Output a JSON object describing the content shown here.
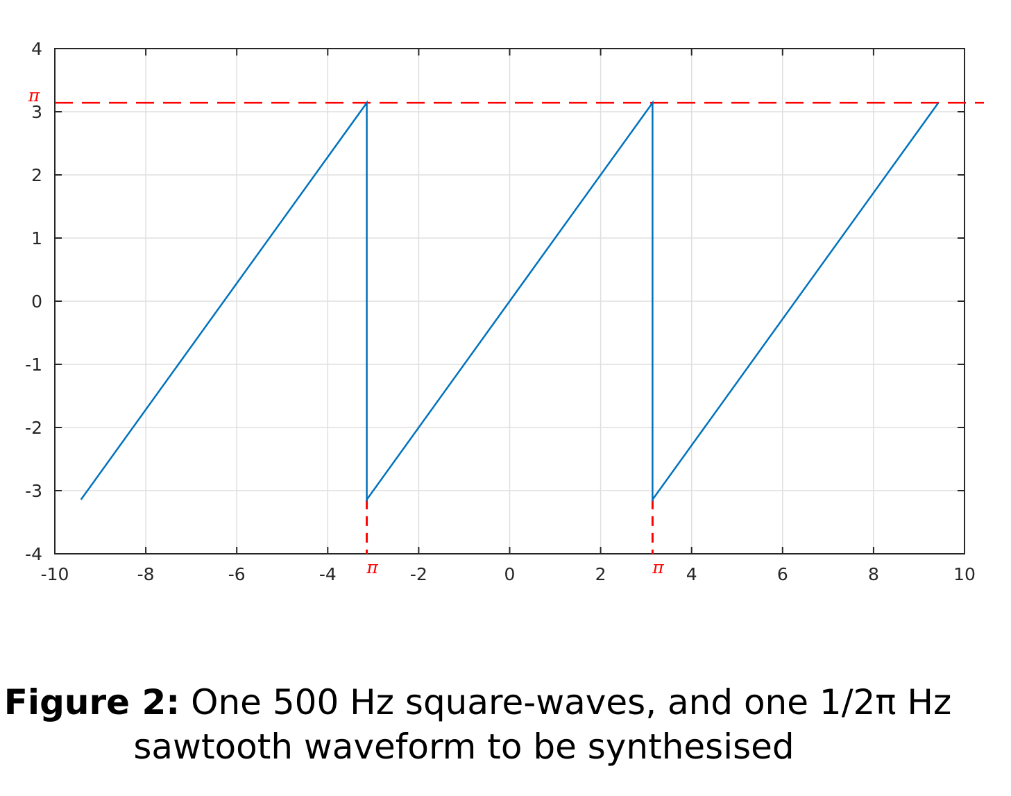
{
  "chart_data": {
    "type": "line",
    "title": "",
    "xlabel": "",
    "ylabel": "",
    "xlim": [
      -10,
      10
    ],
    "ylim": [
      -4,
      4
    ],
    "grid": true,
    "x_ticks": [
      -10,
      -8,
      -6,
      -4,
      -2,
      0,
      2,
      4,
      6,
      8,
      10
    ],
    "y_ticks": [
      -4,
      -3,
      -2,
      -1,
      0,
      1,
      2,
      3,
      4
    ],
    "series": [
      {
        "color": "#0072bd",
        "points": [
          [
            -9.4248,
            -3.1416
          ],
          [
            -3.1416,
            3.1416
          ],
          [
            -3.1416,
            -3.1416
          ],
          [
            3.1416,
            3.1416
          ],
          [
            3.1416,
            -3.1416
          ],
          [
            9.4248,
            3.1416
          ]
        ]
      }
    ],
    "annotations": {
      "color": "#ff0000",
      "pi_label": "π",
      "hline_y": 3.1416,
      "vlines": [
        {
          "x": -3.1416,
          "from_y": -3.1416
        },
        {
          "x": 3.1416,
          "from_y": -3.1416
        }
      ]
    }
  },
  "caption": {
    "bold": "Figure 2:",
    "line1_rest": " One 500 Hz square-waves, and one 1/2π Hz",
    "line2": "sawtooth waveform  to be synthesised"
  }
}
